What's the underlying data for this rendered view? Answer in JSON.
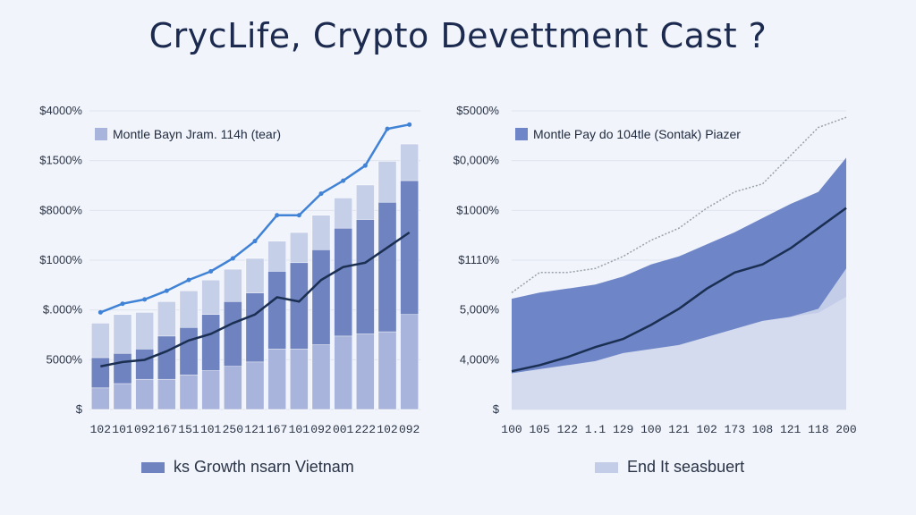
{
  "title": "CrycLife, Crypto Devettment Cast ?",
  "colors": {
    "dark_bar": "#6f83c0",
    "mid_bar": "#a8b4db",
    "light_bar": "#c6cfe8",
    "line_blue": "#3f82d6",
    "line_dark": "#1b2f52",
    "area_dark": "#6e86c7",
    "area_light": "#c3cde8",
    "dotted": "#9aa0aa"
  },
  "chart_data": [
    {
      "type": "bar",
      "legend": "Montle Bayn Jram. 114h (tear)",
      "bottom_legend": "ks Growth nsarn Vietnam",
      "y_ticks": [
        "$4000%",
        "$1500%",
        "$8000%",
        "$1000%",
        "$.000%",
        "5000%",
        "$"
      ],
      "categories": [
        "102",
        "101",
        "092",
        "167",
        "151",
        "101",
        "250",
        "121",
        "167",
        "101",
        "092",
        "001",
        "222",
        "102",
        "092"
      ],
      "series": [
        {
          "values": [
            40,
            44,
            45,
            50,
            55,
            60,
            65,
            70,
            78,
            82,
            90,
            98,
            104,
            115,
            123
          ]
        },
        {
          "values": [
            24,
            26,
            28,
            34,
            38,
            44,
            50,
            54,
            64,
            68,
            74,
            84,
            88,
            96,
            106
          ]
        },
        {
          "values": [
            10,
            12,
            14,
            14,
            16,
            18,
            20,
            22,
            28,
            28,
            30,
            34,
            35,
            36,
            44
          ]
        }
      ],
      "line_blue": [
        45,
        49,
        51,
        55,
        60,
        64,
        70,
        78,
        90,
        90,
        100,
        106,
        113,
        130,
        132
      ],
      "line_dark": [
        20,
        22,
        23,
        27,
        32,
        35,
        40,
        44,
        52,
        50,
        60,
        66,
        68,
        75,
        82
      ]
    },
    {
      "type": "area",
      "legend": "Montle Pay do 104tle (Sontak) Piazer",
      "bottom_legend": "End It seasbuert",
      "y_ticks": [
        "$5000%",
        "$0,000%",
        "$1000%",
        "$1110%",
        "5,000%",
        "4,000%",
        "$"
      ],
      "categories": [
        "100",
        "105",
        "122",
        "1.1",
        "129",
        "100",
        "121",
        "102",
        "173",
        "108",
        "121",
        "118",
        "200"
      ],
      "series": [
        {
          "values": [
            55,
            58,
            60,
            62,
            66,
            72,
            76,
            82,
            88,
            95,
            102,
            108,
            125
          ]
        },
        {
          "values": [
            18,
            20,
            22,
            24,
            28,
            30,
            32,
            36,
            40,
            44,
            46,
            48,
            56
          ]
        },
        {
          "values": [
            10,
            12,
            14,
            16,
            18,
            22,
            26,
            32,
            36,
            40,
            46,
            50,
            70
          ]
        }
      ],
      "line_dark": [
        19,
        22,
        26,
        31,
        35,
        42,
        50,
        60,
        68,
        72,
        80,
        90,
        100
      ],
      "line_dotted": [
        58,
        68,
        68,
        70,
        76,
        84,
        90,
        100,
        108,
        112,
        126,
        140,
        145
      ]
    }
  ]
}
